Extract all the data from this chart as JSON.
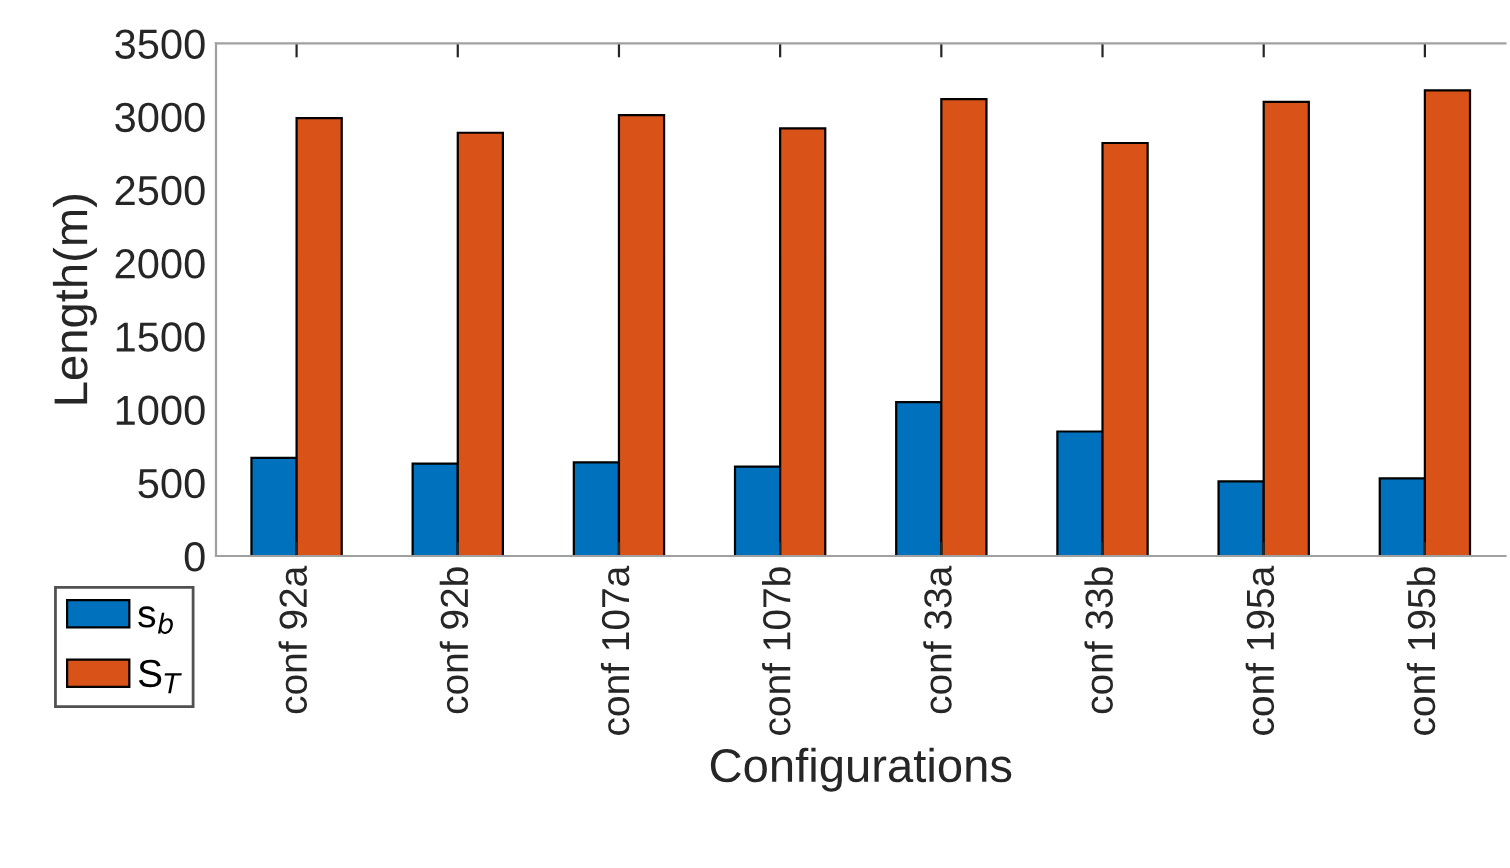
{
  "chart_data": {
    "type": "bar",
    "xlabel": "Configurations",
    "ylabel": "Length(m)",
    "categories": [
      "conf 92a",
      "conf 92b",
      "conf 107a",
      "conf 107b",
      "conf 33a",
      "conf 33b",
      "conf 195a",
      "conf 195b"
    ],
    "series": [
      {
        "name": "s$_{b}$",
        "color": "#0072bd",
        "values": [
          670,
          630,
          640,
          610,
          1050,
          850,
          510,
          530
        ]
      },
      {
        "name": "S$_{T}$",
        "color": "#d95319",
        "values": [
          2990,
          2890,
          3010,
          2920,
          3120,
          2820,
          3100,
          3180
        ]
      }
    ],
    "ylim": [
      0,
      3500
    ],
    "yticks": [
      0,
      500,
      1000,
      1500,
      2000,
      2500,
      3000,
      3500
    ],
    "grid": false,
    "legend": "bottom left"
  }
}
